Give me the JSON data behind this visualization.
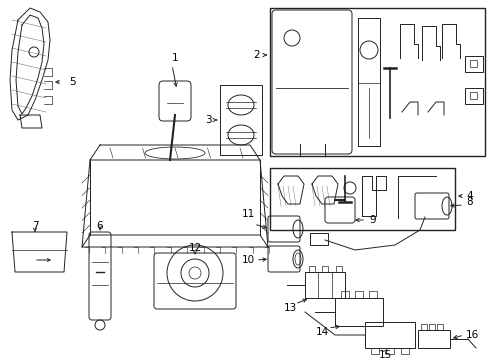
{
  "bg_color": "#ffffff",
  "line_color": "#222222",
  "label_color": "#000000",
  "lw": 0.7
}
